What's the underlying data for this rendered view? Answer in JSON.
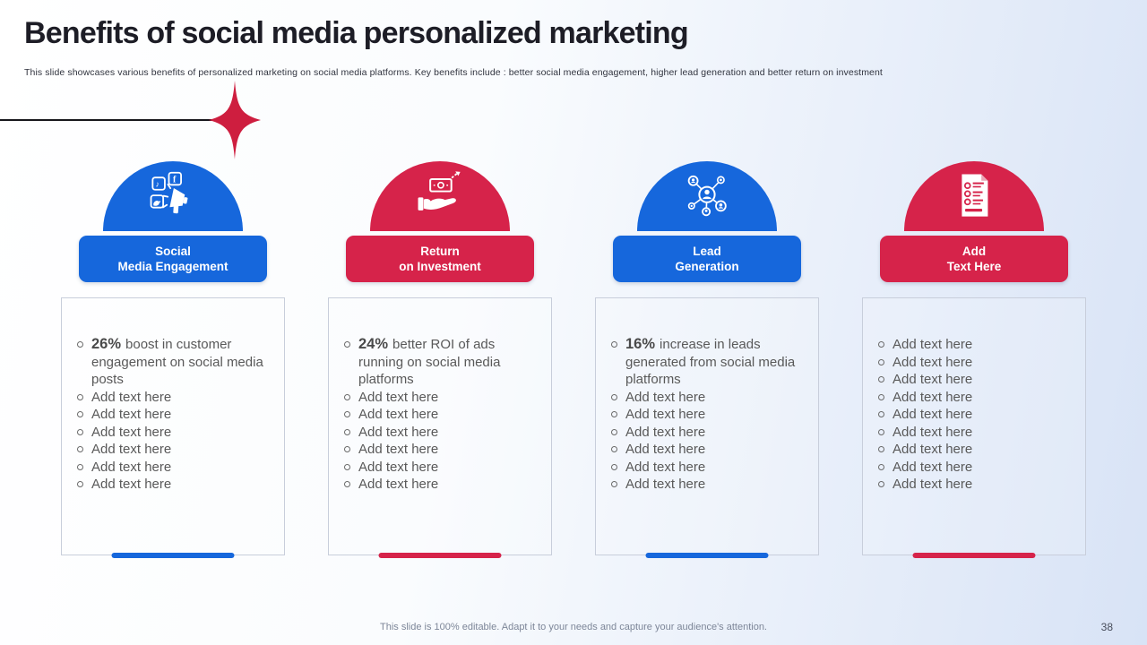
{
  "slide": {
    "title": "Benefits of social media personalized marketing",
    "subtitle": "This slide showcases various benefits of personalized marketing on social media  platforms. Key benefits include : better social media engagement,  higher lead  generation and better return on investment",
    "footer": "This slide is 100% editable. Adapt it to your needs and capture your audience's attention.",
    "page_number": "38"
  },
  "colors": {
    "accent_blue": "#1667DC",
    "accent_red": "#D6234A",
    "star_red": "#CE1E3F",
    "body_text": "#595959",
    "title_text": "#1d1d26"
  },
  "columns": [
    {
      "id": "social-media-engagement",
      "theme": "blue",
      "icon": "megaphone-social-media-icon",
      "label_line1": "Social",
      "label_line2": "Media Engagement",
      "lead_stat": "26%",
      "lead_text": "boost in customer engagement on social media posts",
      "items": [
        "Add text here",
        "Add text here",
        "Add text here",
        "Add text here",
        "Add text here",
        "Add text here"
      ]
    },
    {
      "id": "return-on-investment",
      "theme": "red",
      "icon": "hand-money-arrow-icon",
      "label_line1": "Return",
      "label_line2": "on Investment",
      "lead_stat": "24%",
      "lead_text": "better ROI of ads running on social media platforms",
      "items": [
        "Add text here",
        "Add text here",
        "Add text here",
        "Add text here",
        "Add text here",
        "Add text here"
      ]
    },
    {
      "id": "lead-generation",
      "theme": "blue",
      "icon": "network-people-icon",
      "label_line1": "Lead",
      "label_line2": "Generation",
      "lead_stat": "16%",
      "lead_text": "increase in leads generated from social media platforms",
      "items": [
        "Add text here",
        "Add text here",
        "Add text here",
        "Add text here",
        "Add text here",
        "Add text here"
      ]
    },
    {
      "id": "add-text-here",
      "theme": "red",
      "icon": "document-checklist-icon",
      "label_line1": "Add",
      "label_line2": "Text Here",
      "lead_stat": "",
      "lead_text": "",
      "items": [
        "Add text here",
        "Add text here",
        "Add text here",
        "Add text here",
        "Add text here",
        "Add text here",
        "Add text here",
        "Add text here",
        "Add text here"
      ]
    }
  ]
}
